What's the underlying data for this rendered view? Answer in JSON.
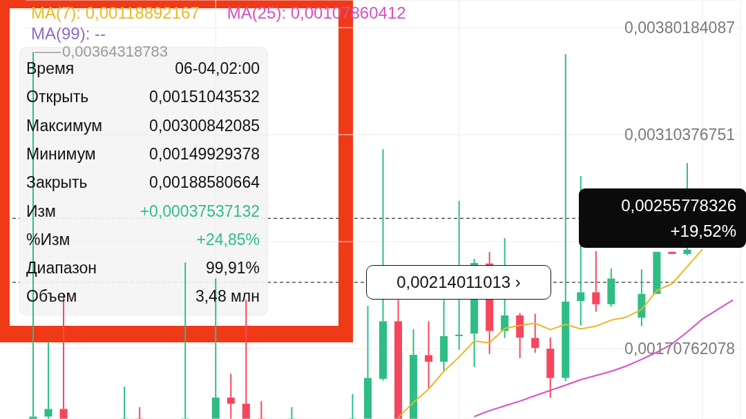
{
  "chart_data": {
    "type": "candlestick",
    "categories": [
      null,
      null,
      null,
      null,
      null,
      null,
      null,
      null,
      null,
      null,
      null,
      null,
      null,
      null,
      null,
      null,
      null,
      null,
      null,
      null,
      null,
      null,
      null,
      null,
      null,
      null,
      null,
      null,
      null,
      null,
      null,
      null,
      null,
      null,
      null,
      null,
      null,
      null,
      null,
      null,
      null,
      null,
      null,
      null,
      null,
      null,
      null
    ],
    "ohlc": [
      [
        0.00125,
        0.00364318783,
        0.00125,
        0.001264
      ],
      [
        0.001264,
        0.00175,
        0.00125,
        0.001314
      ],
      [
        0.001314,
        0.002068,
        0.00125,
        0.00125
      ],
      null,
      null,
      null,
      [
        0.00125,
        0.001459,
        0.00125,
        0.00125
      ],
      [
        0.00125,
        0.001326,
        0.00125,
        0.00125
      ],
      null,
      null,
      [
        0.00125,
        0.00227,
        0.00125,
        0.00125
      ],
      null,
      [
        0.00125,
        0.002165,
        0.00125,
        0.001388
      ],
      [
        0.001388,
        0.001544,
        0.00125,
        0.001348
      ],
      [
        0.001348,
        0.002025,
        0.00125,
        0.00125
      ],
      [
        0.00125,
        0.001365,
        0.00125,
        0.00125
      ],
      null,
      [
        0.00125,
        0.001326,
        0.00125,
        0.00125
      ],
      null,
      null,
      null,
      [
        0.00125,
        0.001412,
        0.00125,
        0.00125
      ],
      [
        0.00125,
        0.001987,
        0.00125,
        0.001516
      ],
      [
        0.00151043532,
        0.00300842085,
        0.00149929378,
        0.00188580664
      ],
      [
        0.001886,
        0.002025,
        0.00125,
        0.00125
      ],
      [
        0.00125,
        0.001834,
        0.00125,
        0.001667
      ],
      [
        0.001665,
        0.001886,
        0.001451,
        0.001622
      ],
      [
        0.001622,
        0.002025,
        0.001559,
        0.001789
      ],
      [
        0.001795,
        0.002671,
        0.001699,
        0.001798
      ],
      [
        0.001805,
        0.002293,
        0.001587,
        0.002266
      ],
      [
        0.002263,
        0.002338,
        0.001672,
        0.001823
      ],
      [
        0.001823,
        0.002429,
        0.001777,
        0.001924
      ],
      [
        0.001924,
        0.00194,
        0.001645,
        0.00178
      ],
      [
        0.001777,
        0.001935,
        0.001681,
        0.001712
      ],
      [
        0.001707,
        0.00178,
        0.001388,
        0.001516
      ],
      [
        0.001516,
        0.003628,
        0.001494,
        0.002014
      ],
      [
        0.002017,
        0.002834,
        0.001858,
        0.002075
      ],
      [
        0.002075,
        0.002344,
        0.001948,
        0.001997
      ],
      [
        0.001997,
        0.00223,
        0.001982,
        0.002165
      ],
      null,
      [
        0.001909,
        0.002224,
        0.001854,
        0.002064
      ],
      [
        0.002064,
        0.002339,
        0.002064,
        0.002339
      ],
      [
        0.002339,
        0.002339,
        0.002325,
        0.002325
      ],
      [
        0.002325,
        0.002919,
        0.002317,
        0.002353
      ],
      null,
      null,
      null
    ],
    "colors": [
      "#2ebd85",
      "#2ebd85",
      "#f6465d",
      null,
      null,
      null,
      "#2ebd85",
      "#f6465d",
      null,
      null,
      "#2ebd85",
      null,
      "#2ebd85",
      "#f6465d",
      "#f6465d",
      "#f6465d",
      null,
      "#2ebd85",
      null,
      null,
      null,
      "#2ebd85",
      "#2ebd85",
      "#2ebd85",
      "#f6465d",
      "#2ebd85",
      "#f6465d",
      "#2ebd85",
      "#2ebd85",
      "#2ebd85",
      "#f6465d",
      "#2ebd85",
      "#f6465d",
      "#f6465d",
      "#f6465d",
      "#2ebd85",
      "#2ebd85",
      "#f6465d",
      "#2ebd85",
      null,
      "#2ebd85",
      "#2ebd85",
      "#f6465d",
      "#2ebd85",
      null,
      null,
      null
    ],
    "series": [
      {
        "type": "line",
        "name": "MA(7): 0,00118892167",
        "color": "#e8b923",
        "values": [
          null,
          null,
          null,
          null,
          null,
          null,
          null,
          null,
          null,
          null,
          null,
          null,
          null,
          null,
          null,
          null,
          null,
          null,
          null,
          null,
          null,
          null,
          null,
          null,
          0.001257,
          0.001357,
          0.001443,
          0.001559,
          0.001653,
          0.001757,
          0.001745,
          0.001839,
          0.001859,
          0.001873,
          0.001831,
          0.001865,
          0.001836,
          0.001854,
          0.001893,
          0.001913,
          0.001963,
          0.002087,
          0.002131,
          0.002243,
          0.002356,
          null,
          null
        ]
      },
      {
        "type": "line",
        "name": "MA(25): 0,00107860412",
        "color": "#d84fc3",
        "values": [
          null,
          null,
          null,
          null,
          null,
          null,
          null,
          null,
          null,
          null,
          null,
          null,
          null,
          null,
          null,
          null,
          null,
          null,
          null,
          null,
          null,
          null,
          null,
          null,
          null,
          null,
          null,
          null,
          null,
          0.001264,
          0.001303,
          0.001334,
          0.001365,
          0.0014,
          0.001435,
          0.001469,
          0.001505,
          0.001532,
          0.001559,
          0.001594,
          0.001637,
          0.001684,
          0.001738,
          0.001816,
          0.001901,
          0.001963,
          0.002025
        ]
      },
      {
        "type": "line",
        "name": "MA(99): --",
        "color": "#8e6cc4",
        "values": [
          null,
          null,
          null,
          null,
          null,
          null,
          null,
          null,
          null,
          null,
          null,
          null,
          null,
          null,
          null,
          null,
          null,
          null,
          null,
          null,
          null,
          null,
          null,
          null,
          null,
          null,
          null,
          null,
          null,
          null,
          null,
          null,
          null,
          null,
          null,
          null,
          null,
          null,
          null,
          null,
          null,
          null,
          null,
          null,
          null,
          null,
          null
        ]
      }
    ],
    "ylim": [
      0.0012483,
      0.003982
    ],
    "yticks": [
      {
        "value": 0.00170762078,
        "label": "0,00170762078"
      },
      {
        "value": 0.00240569415,
        "label": null
      },
      {
        "value": 0.00310376751,
        "label": "0,00310376751"
      },
      {
        "value": 0.00380184087,
        "label": "0,00380184087"
      }
    ],
    "ref_lines": [
      {
        "axis": "y",
        "value": 0.00255778326,
        "label": "0,00255778326 +19,52%",
        "line_style": "dashed"
      },
      {
        "axis": "y",
        "value": 0.00214011013,
        "label": "0,00214011013 ›",
        "line_style": "dashed"
      }
    ],
    "annotations": [
      "Время",
      "06-04,02:00",
      "Открыть",
      "0,00151043532",
      "Максимум",
      "0,00300842085",
      "Минимум",
      "0,00149929378",
      "Закрыть",
      "0,00188580664",
      "Изм",
      "+0,00037537132",
      "%Изм",
      "+24,85%",
      "Диапазон",
      "99,91%",
      "Объем",
      "3,48 млн",
      "0,00364318783"
    ],
    "grid": true,
    "legend": "top left"
  }
}
